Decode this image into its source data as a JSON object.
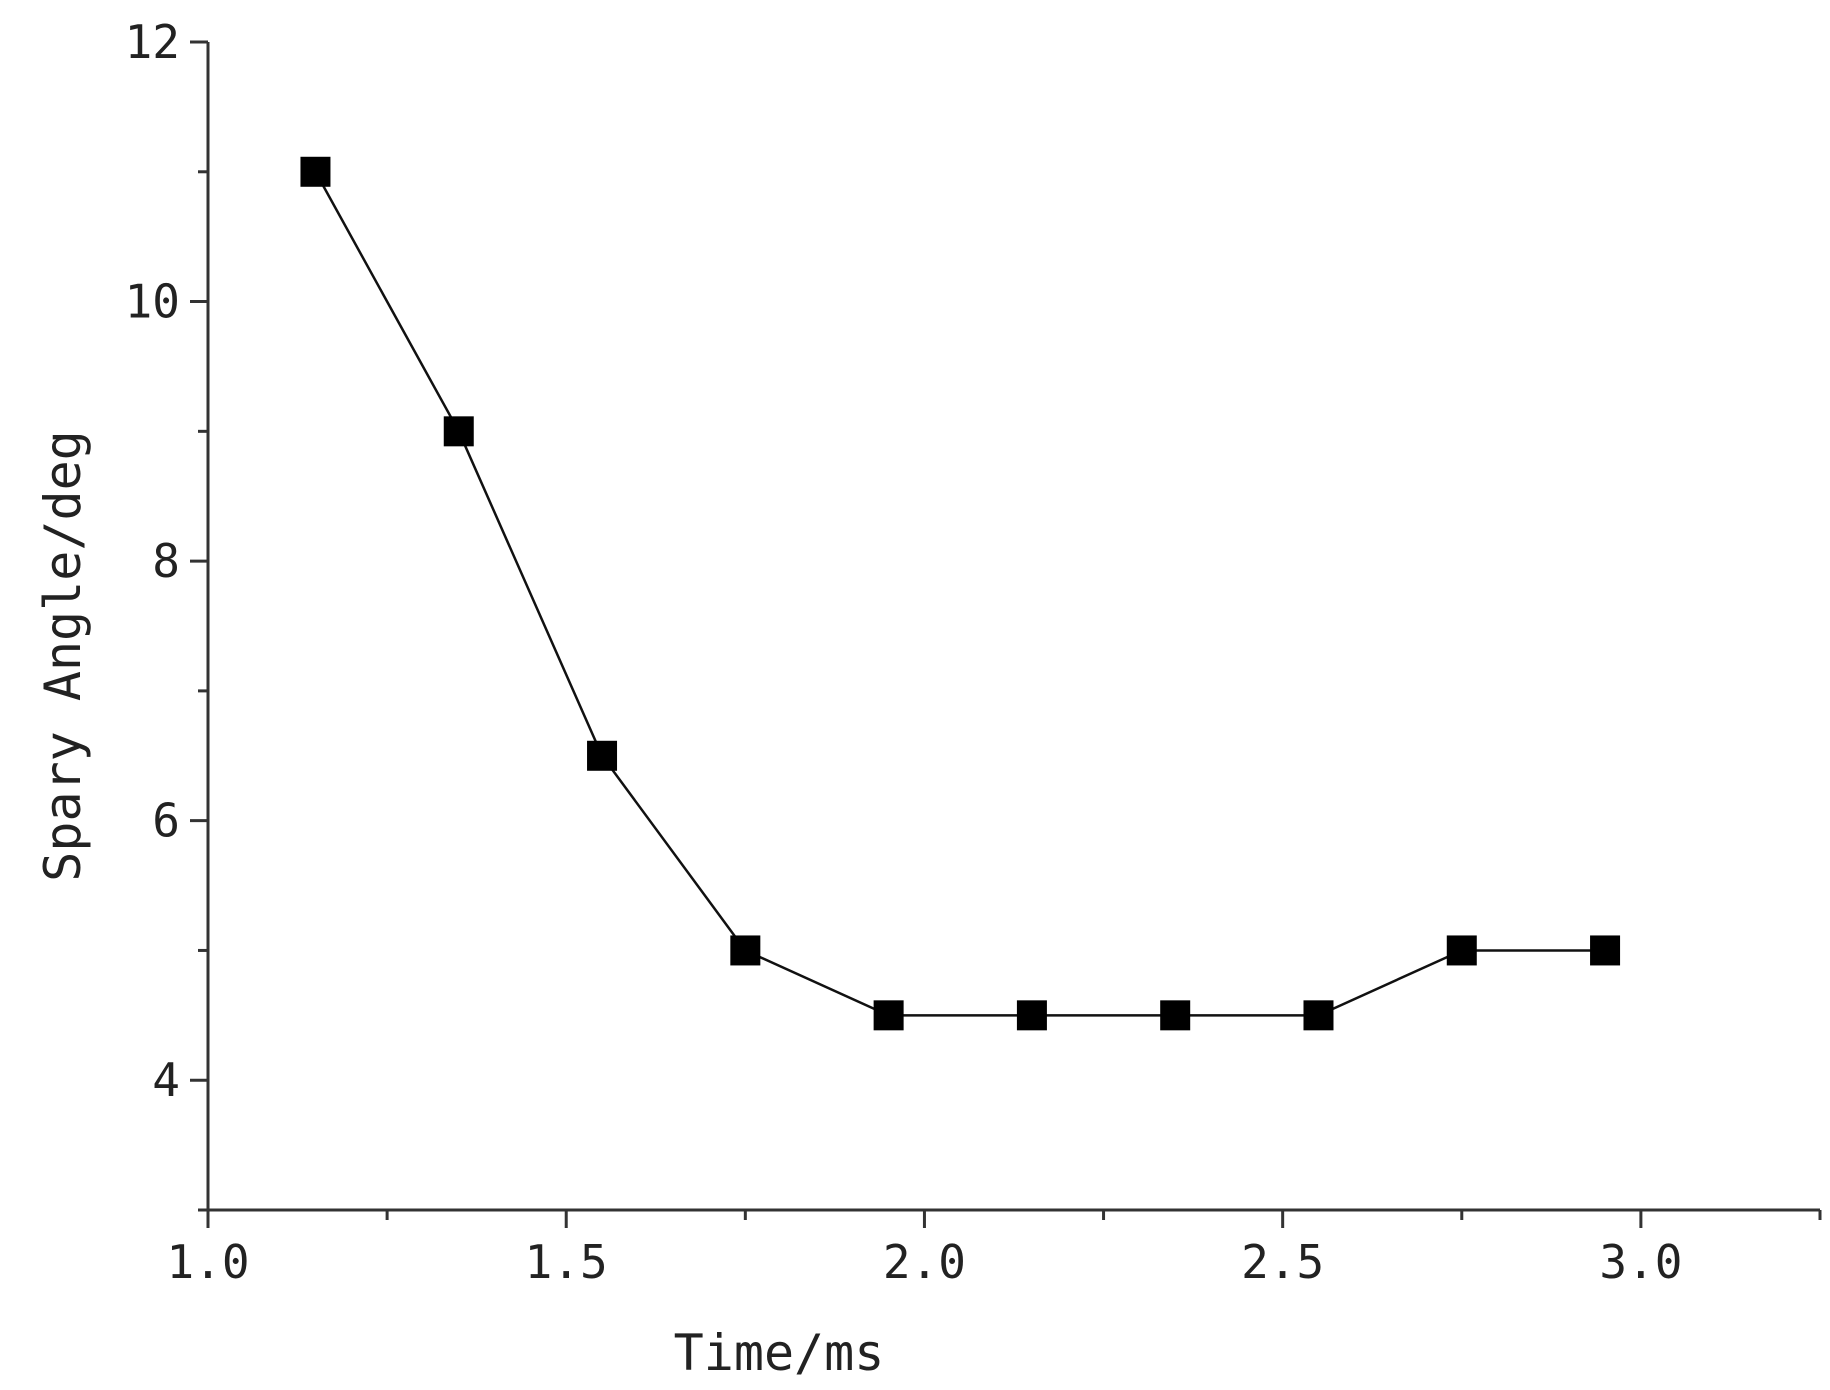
{
  "chart_data": {
    "type": "line",
    "title": "",
    "xlabel": "Time/ms",
    "ylabel": "Spary Angle/deg",
    "xlim": [
      1.0,
      3.25
    ],
    "ylim": [
      3.0,
      12.0
    ],
    "xticks": [
      1.0,
      1.5,
      2.0,
      2.5,
      3.0
    ],
    "xtick_labels": [
      "1.0",
      "1.5",
      "2.0",
      "2.5",
      "3.0"
    ],
    "yticks": [
      4,
      6,
      8,
      10,
      12
    ],
    "ytick_labels": [
      "4",
      "6",
      "8",
      "10",
      "12"
    ],
    "grid": false,
    "series": [
      {
        "marker": "square",
        "color": "#000000",
        "x": [
          1.15,
          1.35,
          1.55,
          1.75,
          1.95,
          2.15,
          2.35,
          2.55,
          2.75,
          2.95
        ],
        "y": [
          11.0,
          9.0,
          6.5,
          5.0,
          4.5,
          4.5,
          4.5,
          4.5,
          5.0,
          5.0
        ]
      }
    ]
  }
}
